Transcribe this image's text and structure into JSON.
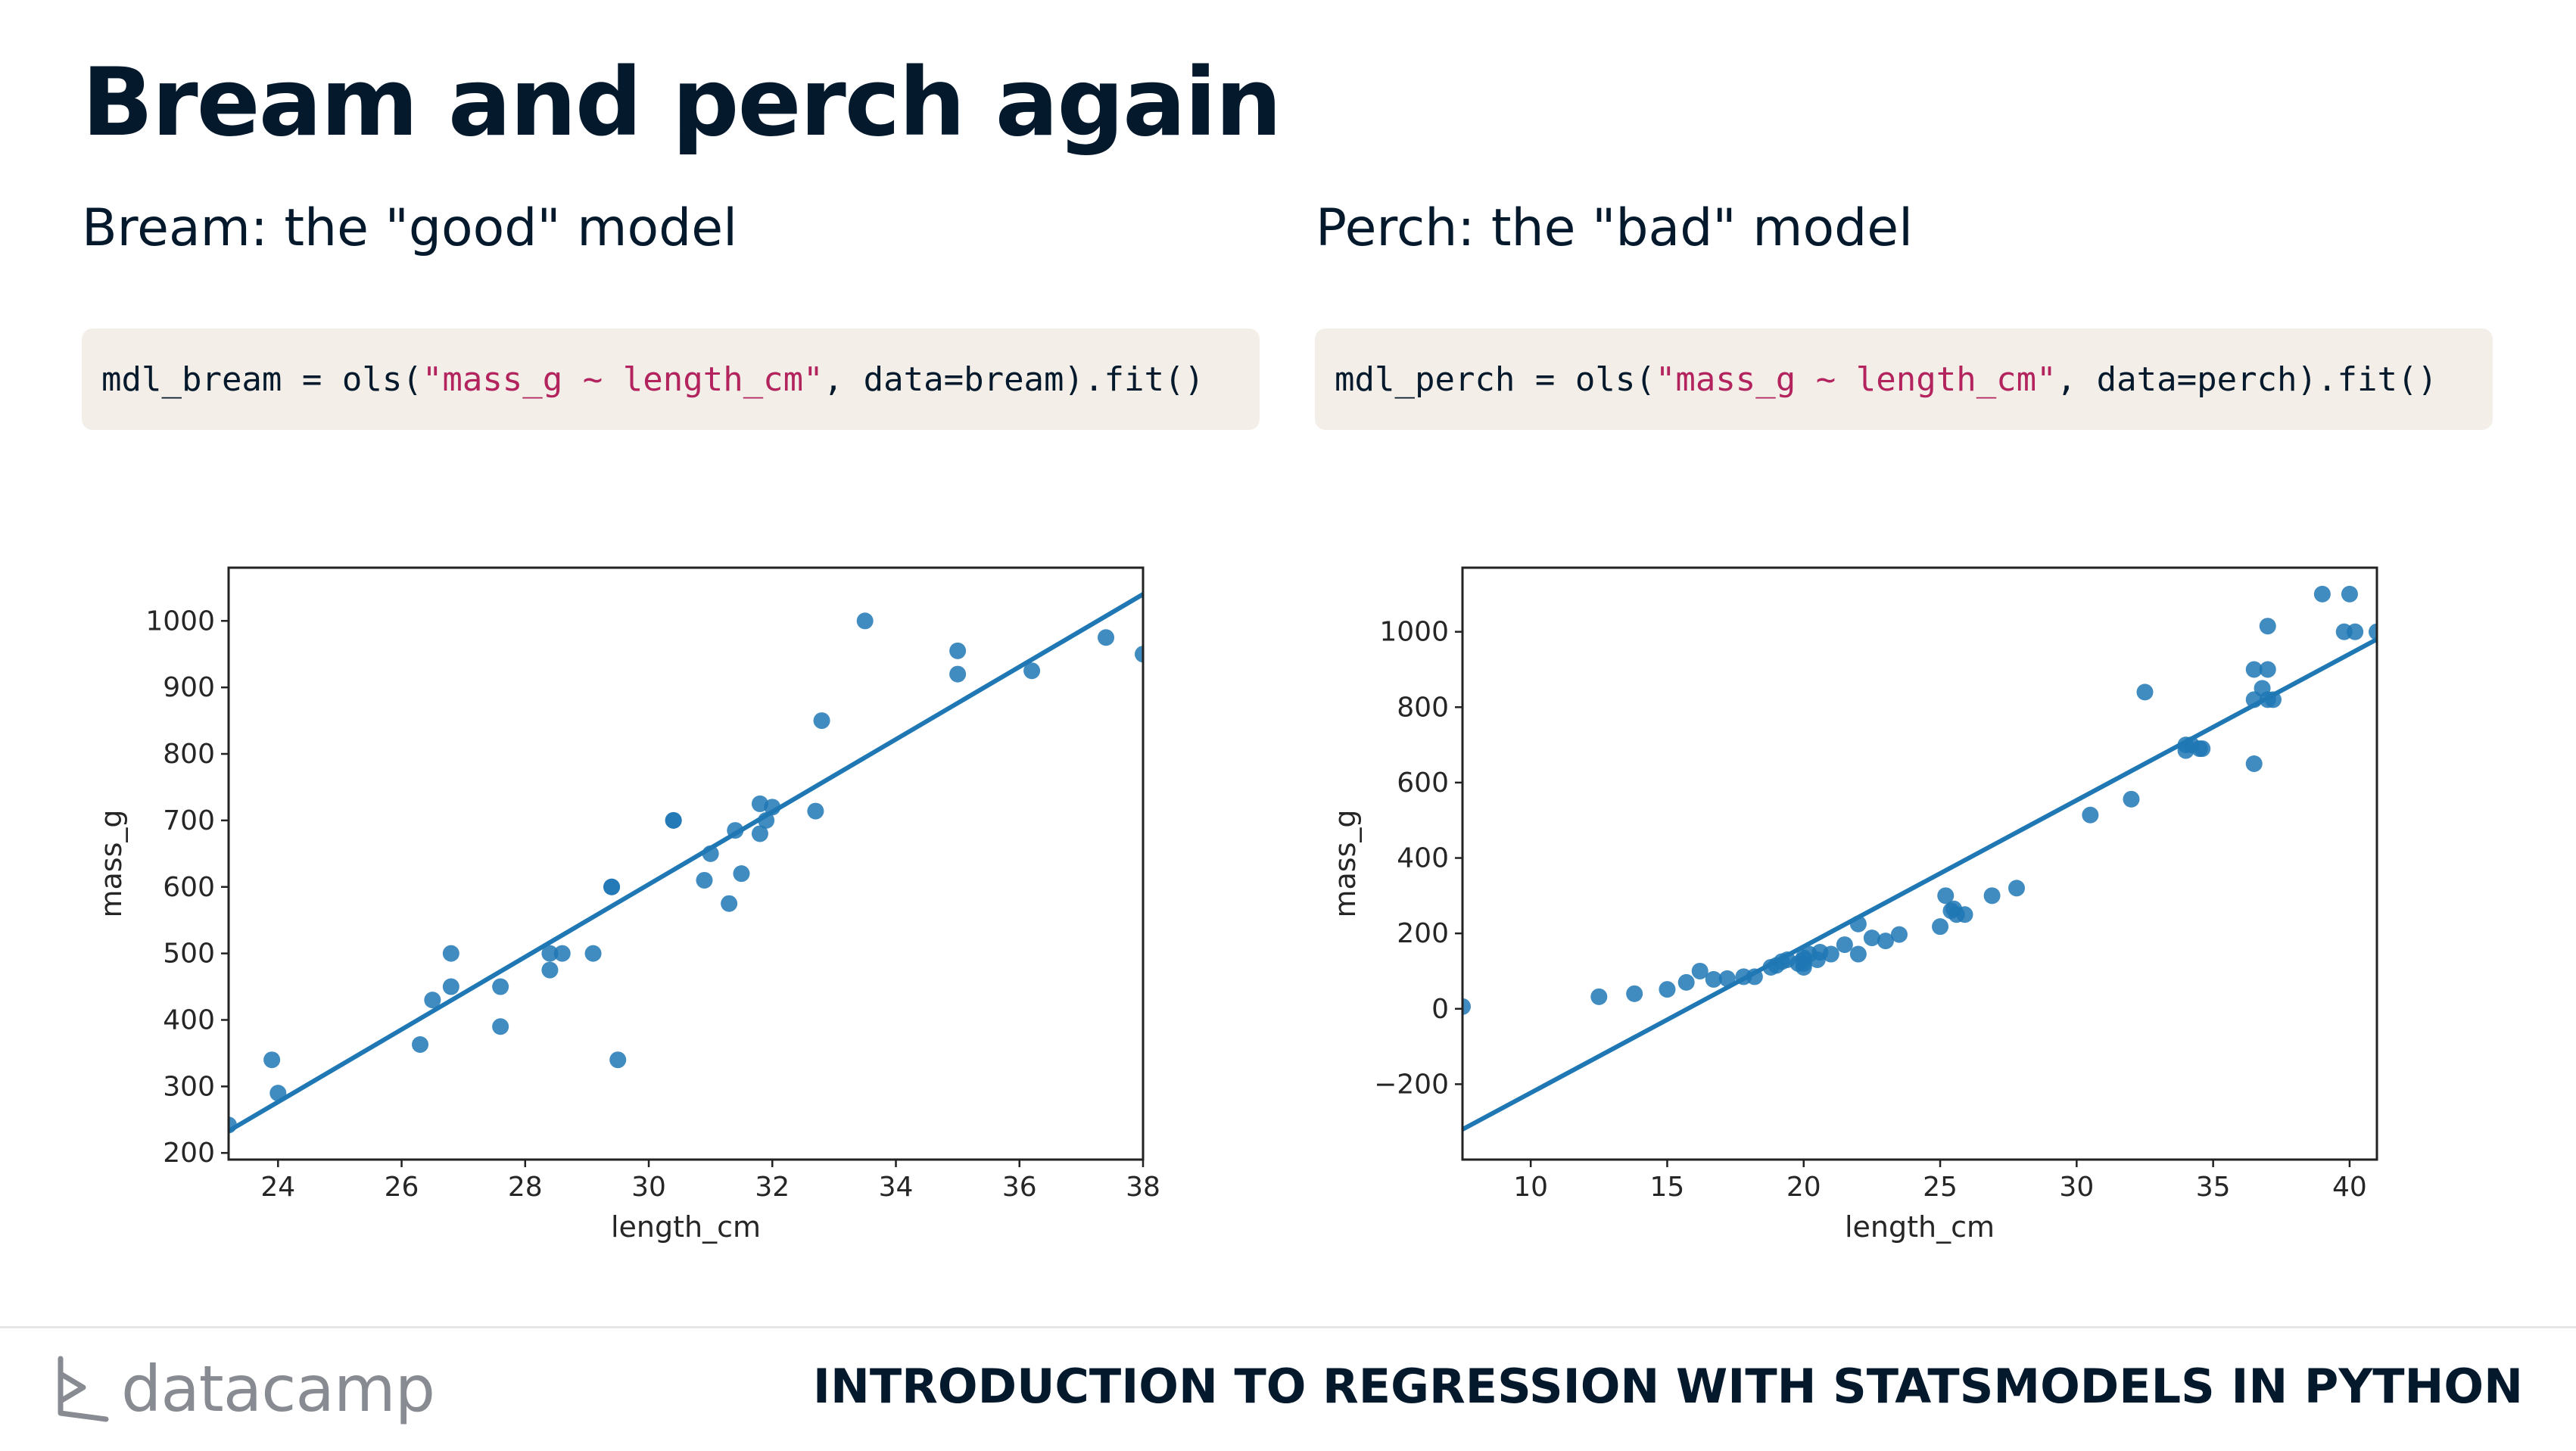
{
  "slide": {
    "title": "Bream and perch again",
    "left_subtitle": "Bream: the \"good\" model",
    "right_subtitle": "Perch: the \"bad\" model"
  },
  "code": {
    "left": {
      "prefix": "mdl_bream = ols(",
      "string": "\"mass_g ~ length_cm\"",
      "suffix": ", data=bream).fit()"
    },
    "right": {
      "prefix": "mdl_perch = ols(",
      "string": "\"mass_g ~ length_cm\"",
      "suffix": ", data=perch).fit()"
    }
  },
  "footer": {
    "brand": "datacamp",
    "course": "INTRODUCTION TO REGRESSION WITH STATSMODELS IN PYTHON"
  },
  "colors": {
    "point": "#1f77b4",
    "line": "#1f77b4",
    "code_bg": "#f3efe8",
    "code_string": "#b3245f",
    "title": "#05192d"
  },
  "chart_data": [
    {
      "type": "scatter",
      "xlabel": "length_cm",
      "ylabel": "mass_g",
      "xlim": [
        23.2,
        38
      ],
      "ylim": [
        190,
        1080
      ],
      "xticks": [
        24,
        26,
        28,
        30,
        32,
        34,
        36,
        38
      ],
      "yticks": [
        200,
        300,
        400,
        500,
        600,
        700,
        800,
        900,
        1000
      ],
      "points": [
        [
          23.2,
          242
        ],
        [
          23.9,
          340
        ],
        [
          24.0,
          290
        ],
        [
          26.3,
          363
        ],
        [
          26.5,
          430
        ],
        [
          26.8,
          450
        ],
        [
          26.8,
          500
        ],
        [
          27.6,
          390
        ],
        [
          27.6,
          450
        ],
        [
          28.4,
          500
        ],
        [
          28.4,
          475
        ],
        [
          28.6,
          500
        ],
        [
          29.1,
          500
        ],
        [
          29.4,
          600
        ],
        [
          29.4,
          600
        ],
        [
          29.5,
          340
        ],
        [
          30.4,
          700
        ],
        [
          30.4,
          700
        ],
        [
          30.9,
          610
        ],
        [
          31.0,
          650
        ],
        [
          31.3,
          575
        ],
        [
          31.4,
          685
        ],
        [
          31.5,
          620
        ],
        [
          31.8,
          680
        ],
        [
          31.8,
          725
        ],
        [
          31.9,
          700
        ],
        [
          32.0,
          720
        ],
        [
          32.7,
          714
        ],
        [
          32.8,
          850
        ],
        [
          33.5,
          1000
        ],
        [
          35.0,
          920
        ],
        [
          35.0,
          955
        ],
        [
          36.2,
          925
        ],
        [
          37.4,
          975
        ],
        [
          38.0,
          950
        ]
      ],
      "regression": {
        "x": [
          23.2,
          38.0
        ],
        "y": [
          233,
          1040
        ]
      }
    },
    {
      "type": "scatter",
      "xlabel": "length_cm",
      "ylabel": "mass_g",
      "xlim": [
        7.5,
        41
      ],
      "ylim": [
        -400,
        1170
      ],
      "xticks": [
        10,
        15,
        20,
        25,
        30,
        35,
        40
      ],
      "yticks": [
        -200,
        0,
        200,
        400,
        600,
        800,
        1000
      ],
      "points": [
        [
          7.5,
          5.9
        ],
        [
          12.5,
          32
        ],
        [
          13.8,
          40
        ],
        [
          15.0,
          51.5
        ],
        [
          15.7,
          70
        ],
        [
          16.2,
          100
        ],
        [
          16.7,
          78
        ],
        [
          17.2,
          80
        ],
        [
          17.8,
          85
        ],
        [
          18.2,
          85
        ],
        [
          18.8,
          110
        ],
        [
          19.0,
          115
        ],
        [
          19.2,
          125
        ],
        [
          19.4,
          130
        ],
        [
          19.8,
          120
        ],
        [
          20.0,
          120
        ],
        [
          20.0,
          130
        ],
        [
          20.0,
          135
        ],
        [
          20.0,
          110
        ],
        [
          20.2,
          145
        ],
        [
          20.5,
          130
        ],
        [
          20.6,
          150
        ],
        [
          21.0,
          145
        ],
        [
          21.5,
          170
        ],
        [
          22.0,
          145
        ],
        [
          22.0,
          225
        ],
        [
          22.5,
          188
        ],
        [
          23.0,
          180
        ],
        [
          23.5,
          197
        ],
        [
          25.0,
          218
        ],
        [
          25.2,
          300
        ],
        [
          25.4,
          260
        ],
        [
          25.5,
          265
        ],
        [
          25.6,
          250
        ],
        [
          25.9,
          250
        ],
        [
          26.9,
          300
        ],
        [
          27.8,
          320
        ],
        [
          30.5,
          514
        ],
        [
          32.0,
          556
        ],
        [
          32.5,
          840
        ],
        [
          34.0,
          685
        ],
        [
          34.0,
          700
        ],
        [
          34.2,
          700
        ],
        [
          34.5,
          690
        ],
        [
          34.6,
          690
        ],
        [
          36.5,
          650
        ],
        [
          36.5,
          820
        ],
        [
          36.5,
          900
        ],
        [
          36.8,
          850
        ],
        [
          37.0,
          1015
        ],
        [
          37.0,
          820
        ],
        [
          37.0,
          900
        ],
        [
          37.2,
          820
        ],
        [
          39.0,
          1100
        ],
        [
          39.8,
          1000
        ],
        [
          40.0,
          1100
        ],
        [
          40.2,
          1000
        ],
        [
          41.0,
          1000
        ]
      ],
      "regression": {
        "x": [
          7.5,
          41.0
        ],
        "y": [
          -320,
          980
        ]
      }
    }
  ]
}
